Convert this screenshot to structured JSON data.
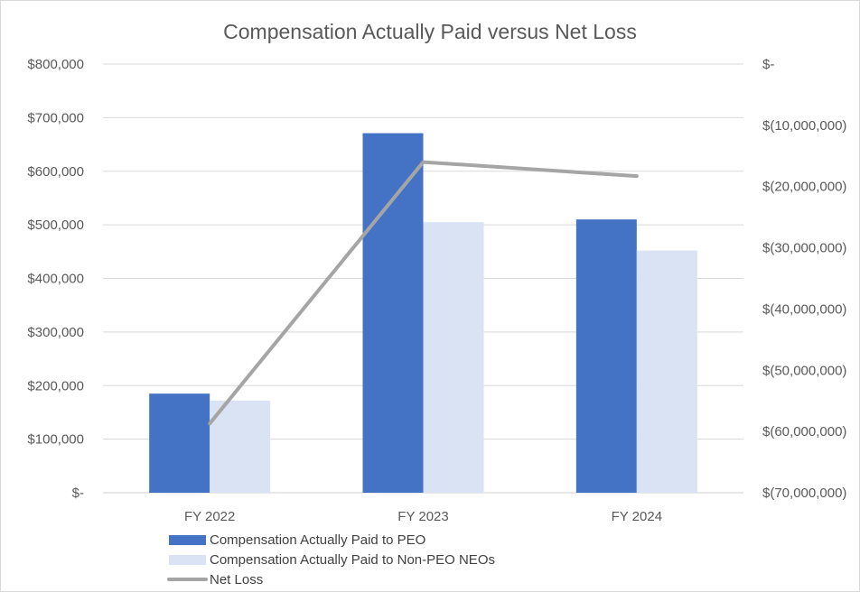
{
  "chart_data": {
    "type": "bar",
    "title": "Compensation Actually Paid versus Net Loss",
    "categories": [
      "FY 2022",
      "FY 2023",
      "FY 2024"
    ],
    "series": [
      {
        "name": "Compensation Actually Paid to PEO",
        "type": "bar",
        "axis": "left",
        "color": "#4472C4",
        "values": [
          185000,
          671000,
          510000
        ]
      },
      {
        "name": "Compensation Actually Paid to Non-PEO NEOs",
        "type": "bar",
        "axis": "left",
        "color": "#DAE3F3",
        "values": [
          172000,
          505000,
          452000
        ]
      },
      {
        "name": "Net Loss",
        "type": "line",
        "axis": "right",
        "color": "#A5A5A5",
        "values": [
          -58700000,
          -16000000,
          -18300000
        ]
      }
    ],
    "y_left": {
      "min": 0,
      "max": 800000,
      "ticks": [
        0,
        100000,
        200000,
        300000,
        400000,
        500000,
        600000,
        700000,
        800000
      ],
      "tick_labels": [
        "$-",
        "$100,000",
        "$200,000",
        "$300,000",
        "$400,000",
        "$500,000",
        "$600,000",
        "$700,000",
        "$800,000"
      ]
    },
    "y_right": {
      "min": -70000000,
      "max": 0,
      "ticks": [
        0,
        -10000000,
        -20000000,
        -30000000,
        -40000000,
        -50000000,
        -60000000,
        -70000000
      ],
      "tick_labels": [
        "$-",
        "$(10,000,000)",
        "$(20,000,000)",
        "$(30,000,000)",
        "$(40,000,000)",
        "$(50,000,000)",
        "$(60,000,000)",
        "$(70,000,000)"
      ]
    },
    "grid": true,
    "legend_position": "bottom-left"
  }
}
